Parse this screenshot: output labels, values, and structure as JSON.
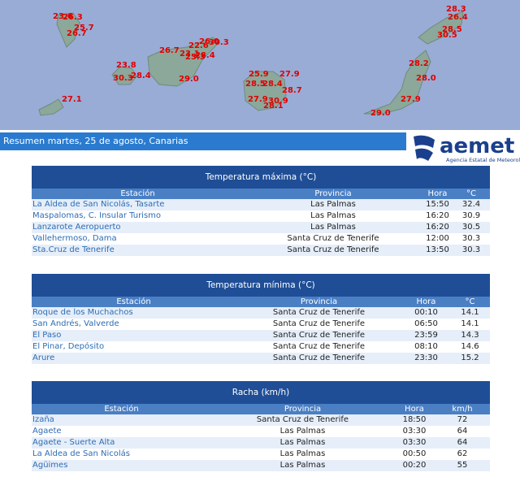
{
  "map": {
    "labels": [
      "23.6",
      "26.3",
      "25.7",
      "26.7",
      "27.1",
      "23.8",
      "30.3",
      "28.4",
      "26.7",
      "22.6",
      "26.0",
      "30.3",
      "23.1",
      "23.3",
      "28.4",
      "29.0",
      "25.9",
      "27.9",
      "28.5",
      "28.4",
      "28.7",
      "27.9",
      "30.9",
      "28.1",
      "28.3",
      "26.4",
      "28.5",
      "30.5",
      "28.2",
      "28.0",
      "27.9",
      "29.0"
    ]
  },
  "header": {
    "title": "Resumen martes, 25 de agosto, Canarias",
    "logo": "aemet",
    "logo_subtitle": "Agencia Estatal de Meteorología"
  },
  "tables": [
    {
      "title": "Temperatura máxima (°C)",
      "columns": [
        "Estación",
        "Provincia",
        "Hora",
        "°C"
      ],
      "rows": [
        [
          "La Aldea de San Nicolás, Tasarte",
          "Las Palmas",
          "15:50",
          "32.4"
        ],
        [
          "Maspalomas, C. Insular Turismo",
          "Las Palmas",
          "16:20",
          "30.9"
        ],
        [
          "Lanzarote Aeropuerto",
          "Las Palmas",
          "16:20",
          "30.5"
        ],
        [
          "Vallehermoso, Dama",
          "Santa Cruz de Tenerife",
          "12:00",
          "30.3"
        ],
        [
          "Sta.Cruz de Tenerife",
          "Santa Cruz de Tenerife",
          "13:50",
          "30.3"
        ]
      ]
    },
    {
      "title": "Temperatura mínima (°C)",
      "columns": [
        "Estación",
        "Provincia",
        "Hora",
        "°C"
      ],
      "rows": [
        [
          "Roque de los Muchachos",
          "Santa Cruz de Tenerife",
          "00:10",
          "14.1"
        ],
        [
          "San Andrés, Valverde",
          "Santa Cruz de Tenerife",
          "06:50",
          "14.1"
        ],
        [
          "El Paso",
          "Santa Cruz de Tenerife",
          "23:59",
          "14.3"
        ],
        [
          "El Pinar, Depósito",
          "Santa Cruz de Tenerife",
          "08:10",
          "14.6"
        ],
        [
          "Arure",
          "Santa Cruz de Tenerife",
          "23:30",
          "15.2"
        ]
      ]
    },
    {
      "title": "Racha (km/h)",
      "columns": [
        "Estación",
        "Provincia",
        "Hora",
        "km/h"
      ],
      "rows": [
        [
          "Izaña",
          "Santa Cruz de Tenerife",
          "18:50",
          "72"
        ],
        [
          "Agaete",
          "Las Palmas",
          "03:30",
          "64"
        ],
        [
          "Agaete - Suerte Alta",
          "Las Palmas",
          "03:30",
          "64"
        ],
        [
          "La Aldea de San Nicolás",
          "Las Palmas",
          "00:50",
          "62"
        ],
        [
          "Agüimes",
          "Las Palmas",
          "00:20",
          "55"
        ]
      ]
    }
  ]
}
